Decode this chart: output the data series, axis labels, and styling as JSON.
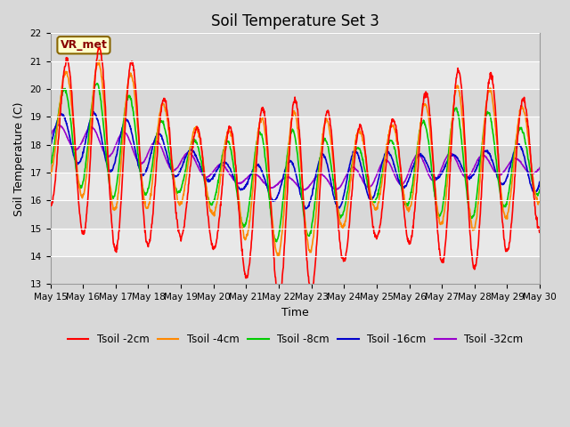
{
  "title": "Soil Temperature Set 3",
  "xlabel": "Time",
  "ylabel": "Soil Temperature (C)",
  "ylim": [
    13.0,
    22.0
  ],
  "yticks": [
    13.0,
    14.0,
    15.0,
    16.0,
    17.0,
    18.0,
    19.0,
    20.0,
    21.0,
    22.0
  ],
  "outer_bg_color": "#d8d8d8",
  "plot_bg_color": "#d8d8d8",
  "grid_color": "#ffffff",
  "annotation_text": "VR_met",
  "annotation_box_facecolor": "#ffffcc",
  "annotation_box_edgecolor": "#886600",
  "legend_labels": [
    "Tsoil -2cm",
    "Tsoil -4cm",
    "Tsoil -8cm",
    "Tsoil -16cm",
    "Tsoil -32cm"
  ],
  "line_colors": [
    "#ff0000",
    "#ff8800",
    "#00cc00",
    "#0000cc",
    "#9900cc"
  ],
  "line_width": 1.2,
  "n_points": 1440,
  "xtick_labels": [
    "May 15",
    "May 16",
    "May 17",
    "May 18",
    "May 19",
    "May 20",
    "May 21",
    "May 22",
    "May 23",
    "May 24",
    "May 25",
    "May 26",
    "May 27",
    "May 28",
    "May 29",
    "May 30"
  ],
  "title_fontsize": 12,
  "axis_label_fontsize": 9,
  "tick_fontsize": 7.5,
  "legend_fontsize": 8.5,
  "band_colors": [
    "#d8d8d8",
    "#e8e8e8"
  ]
}
